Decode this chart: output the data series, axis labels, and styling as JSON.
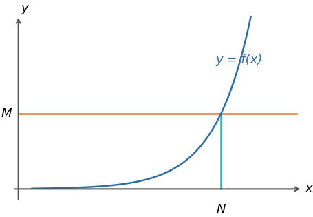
{
  "title": "",
  "xlabel": "x",
  "ylabel": "y",
  "curve_color": "#2e6da4",
  "hline_color": "#e07030",
  "vline_color": "#3aafa9",
  "label_M": "M",
  "label_N": "N",
  "curve_label": "y = f(x)",
  "curve_label_color": "#2e6da4",
  "N_val": 7.5,
  "M_val": 0.48,
  "xlim": [
    0,
    10.5
  ],
  "ylim": [
    -0.05,
    1.1
  ],
  "bg_color": "#ffffff",
  "axis_color": "#555555",
  "font_size_labels": 13,
  "font_size_curve_label": 13,
  "curve_k": 0.75,
  "x_curve_start": 0.5,
  "x_curve_end": 9.6
}
